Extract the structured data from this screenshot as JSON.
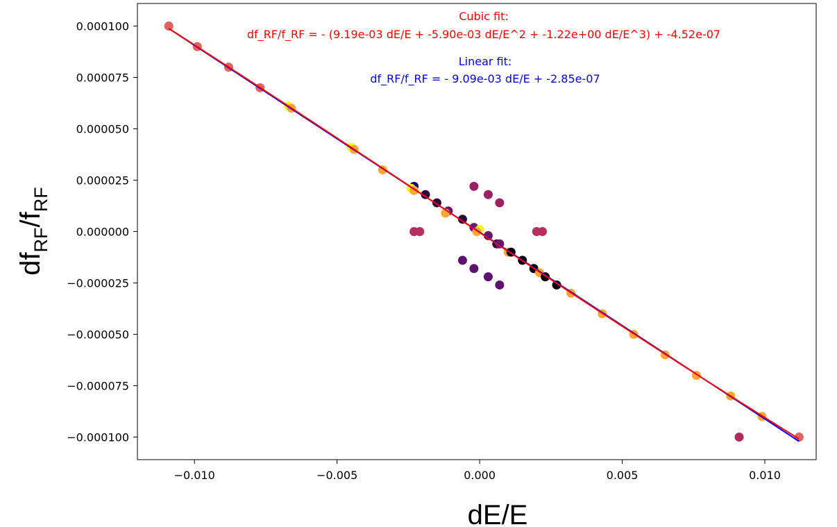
{
  "chart_data": {
    "type": "scatter",
    "title": "",
    "xlabel": "dE/E",
    "ylabel": {
      "main": "df",
      "sub1": "RF",
      "mid": "/f",
      "sub2": "RF"
    },
    "xlim": [
      -0.012,
      0.0118
    ],
    "ylim": [
      -0.000111,
      0.000111
    ],
    "x_ticks": [
      -0.01,
      -0.005,
      0.0,
      0.005,
      0.01
    ],
    "x_tick_labels": [
      "−0.010",
      "−0.005",
      "0.000",
      "0.005",
      "0.010"
    ],
    "y_ticks": [
      0.0001,
      7.5e-05,
      5e-05,
      2.5e-05,
      0.0,
      -2.5e-05,
      -5e-05,
      -7.5e-05,
      -0.0001
    ],
    "y_tick_labels": [
      "0.000100",
      "0.000075",
      "0.000050",
      "0.000025",
      "0.000000",
      "−0.000025",
      "−0.000050",
      "−0.000075",
      "−0.000100"
    ],
    "grid": false,
    "annotations": {
      "cubic": {
        "title": "Cubic fit:",
        "formula": "df_RF/f_RF = - (9.19e-03 dE/E +  -5.90e-03 dE/E^2 + -1.22e+00 dE/E^3) + -4.52e-07",
        "color": "#ff0000"
      },
      "linear": {
        "title": "Linear fit:",
        "formula": "df_RF/f_RF = - 9.09e-03 dE/E + -2.85e-07",
        "color": "#0000ff"
      }
    },
    "fits": [
      {
        "name": "Linear fit",
        "type": "linear",
        "coefficient": -0.00909,
        "intercept": -2.85e-07,
        "color": "#0000ff"
      },
      {
        "name": "Cubic fit",
        "type": "cubic",
        "c1": -0.00919,
        "c2": 0.0059,
        "c3": 1.22,
        "intercept": -4.52e-07,
        "color": "#ff0000"
      }
    ],
    "points": [
      {
        "x": -0.0109,
        "y": 0.0001,
        "color": "#fca636"
      },
      {
        "x": -0.0109,
        "y": 0.0001,
        "color": "#e16462"
      },
      {
        "x": -0.0099,
        "y": 9e-05,
        "color": "#fca636"
      },
      {
        "x": -0.0099,
        "y": 9e-05,
        "color": "#e16462"
      },
      {
        "x": -0.0088,
        "y": 8e-05,
        "color": "#fca636"
      },
      {
        "x": -0.0088,
        "y": 8e-05,
        "color": "#e16462"
      },
      {
        "x": -0.0077,
        "y": 7e-05,
        "color": "#fca636"
      },
      {
        "x": -0.0077,
        "y": 7e-05,
        "color": "#e16462"
      },
      {
        "x": -0.0067,
        "y": 6.1e-05,
        "color": "#f0f921"
      },
      {
        "x": -0.0066,
        "y": 6e-05,
        "color": "#fca636"
      },
      {
        "x": -0.0045,
        "y": 4.1e-05,
        "color": "#f0f921"
      },
      {
        "x": -0.0044,
        "y": 4e-05,
        "color": "#fca636"
      },
      {
        "x": -0.0034,
        "y": 3e-05,
        "color": "#fca636"
      },
      {
        "x": -0.0023,
        "y": 2.2e-05,
        "color": "#0d0887"
      },
      {
        "x": -0.0024,
        "y": 2.1e-05,
        "color": "#f0f921"
      },
      {
        "x": -0.0023,
        "y": 2e-05,
        "color": "#fca636"
      },
      {
        "x": -0.0019,
        "y": 1.8e-05,
        "color": "#2d0a3e"
      },
      {
        "x": -0.0015,
        "y": 1.4e-05,
        "color": "#2d0a3e"
      },
      {
        "x": -0.0011,
        "y": 1e-05,
        "color": "#6a176e"
      },
      {
        "x": -0.0012,
        "y": 9e-06,
        "color": "#fca636"
      },
      {
        "x": -0.0006,
        "y": 6e-06,
        "color": "#2d0a3e"
      },
      {
        "x": -0.0002,
        "y": 2e-06,
        "color": "#6a176e"
      },
      {
        "x": 0.0,
        "y": 1e-06,
        "color": "#f0f921"
      },
      {
        "x": -0.0001,
        "y": 0.0,
        "color": "#fca636"
      },
      {
        "x": 0.0003,
        "y": -2e-06,
        "color": "#6a176e"
      },
      {
        "x": 0.0006,
        "y": -6e-06,
        "color": "#2d0a3e"
      },
      {
        "x": 0.0007,
        "y": -6e-06,
        "color": "#6a176e"
      },
      {
        "x": 0.001,
        "y": -1e-05,
        "color": "#fca636"
      },
      {
        "x": 0.0011,
        "y": -1e-05,
        "color": "#000004"
      },
      {
        "x": 0.0015,
        "y": -1.4e-05,
        "color": "#000004"
      },
      {
        "x": 0.0019,
        "y": -1.8e-05,
        "color": "#000004"
      },
      {
        "x": 0.0021,
        "y": -2e-05,
        "color": "#fca636"
      },
      {
        "x": 0.0023,
        "y": -2.2e-05,
        "color": "#000004"
      },
      {
        "x": 0.0027,
        "y": -2.6e-05,
        "color": "#000004"
      },
      {
        "x": 0.0032,
        "y": -3e-05,
        "color": "#fca636"
      },
      {
        "x": 0.0043,
        "y": -4e-05,
        "color": "#fca636"
      },
      {
        "x": 0.0054,
        "y": -5e-05,
        "color": "#fca636"
      },
      {
        "x": 0.0065,
        "y": -6e-05,
        "color": "#fca636"
      },
      {
        "x": 0.0076,
        "y": -7e-05,
        "color": "#fca636"
      },
      {
        "x": 0.0088,
        "y": -8e-05,
        "color": "#fca636"
      },
      {
        "x": 0.0099,
        "y": -9e-05,
        "color": "#fca636"
      },
      {
        "x": 0.0112,
        "y": -0.0001,
        "color": "#fca636"
      },
      {
        "x": 0.0112,
        "y": -0.0001,
        "color": "#e16462"
      },
      {
        "x": 0.0091,
        "y": -0.0001,
        "color": "#b12a5a"
      },
      {
        "x": -0.0023,
        "y": 0.0,
        "color": "#b6305f"
      },
      {
        "x": -0.0021,
        "y": 0.0,
        "color": "#b6305f"
      },
      {
        "x": 0.002,
        "y": 0.0,
        "color": "#b6305f"
      },
      {
        "x": 0.0022,
        "y": 0.0,
        "color": "#b6305f"
      },
      {
        "x": -0.0002,
        "y": 2.2e-05,
        "color": "#9c2064"
      },
      {
        "x": 0.0003,
        "y": 1.8e-05,
        "color": "#9c2064"
      },
      {
        "x": 0.0007,
        "y": 1.4e-05,
        "color": "#9c2064"
      },
      {
        "x": -0.0006,
        "y": -1.4e-05,
        "color": "#5c126e"
      },
      {
        "x": -0.0002,
        "y": -1.8e-05,
        "color": "#5c126e"
      },
      {
        "x": 0.0003,
        "y": -2.2e-05,
        "color": "#5c126e"
      },
      {
        "x": 0.0007,
        "y": -2.6e-05,
        "color": "#5c126e"
      }
    ]
  }
}
